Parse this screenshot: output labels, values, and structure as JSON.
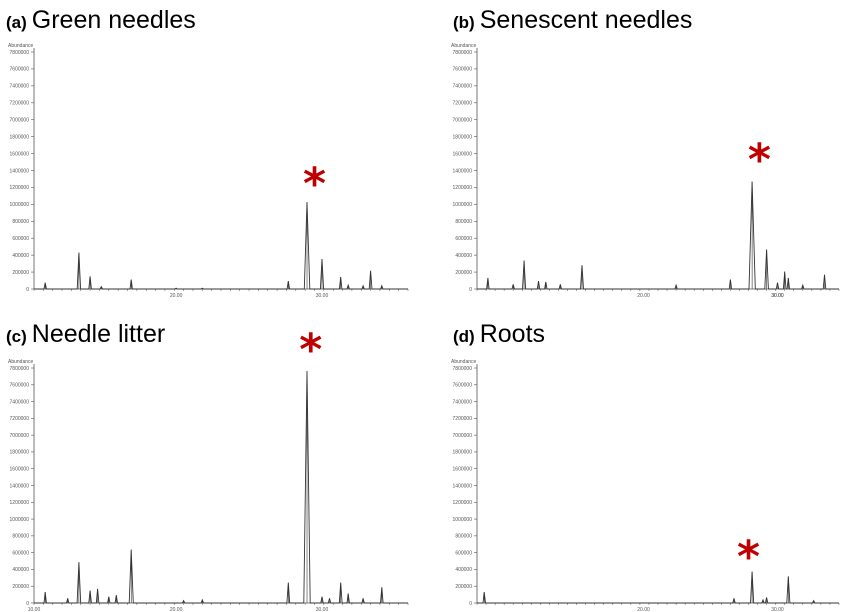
{
  "colors": {
    "line": "#333333",
    "marker": "#c00000",
    "axis": "#555555"
  },
  "chart_data": [
    {
      "type": "line",
      "panel_letter": "(a)",
      "title": "Green needles",
      "ylabel": "Abundance",
      "ytick_labels": [
        "7800000",
        "7600000",
        "7400000",
        "7200000",
        "7000000",
        "1800000",
        "1600000",
        "1400000",
        "1200000",
        "1000000",
        "800000",
        "600000",
        "400000",
        "200000",
        "0"
      ],
      "xtick_labels": [
        "20.00",
        "30.00"
      ],
      "xlim": [
        0,
        100
      ],
      "ylim": [
        0,
        15
      ],
      "marker_symbol": "*",
      "marker_x": 75,
      "marker_y": 7.0,
      "peaks": [
        {
          "x": 3,
          "y": 0.4
        },
        {
          "x": 12,
          "y": 2.3
        },
        {
          "x": 15,
          "y": 0.8
        },
        {
          "x": 18,
          "y": 0.15
        },
        {
          "x": 26,
          "y": 0.6
        },
        {
          "x": 38,
          "y": 0.05
        },
        {
          "x": 45,
          "y": 0.05
        },
        {
          "x": 68,
          "y": 0.5
        },
        {
          "x": 73,
          "y": 5.5
        },
        {
          "x": 77,
          "y": 1.9
        },
        {
          "x": 82,
          "y": 0.75
        },
        {
          "x": 84,
          "y": 0.25
        },
        {
          "x": 88,
          "y": 0.2
        },
        {
          "x": 90,
          "y": 1.15
        },
        {
          "x": 93,
          "y": 0.2
        }
      ]
    },
    {
      "type": "line",
      "panel_letter": "(b)",
      "title": "Senescent needles",
      "ylabel": "Abundance",
      "ytick_labels": [
        "7800000",
        "7600000",
        "7400000",
        "7200000",
        "7000000",
        "1800000",
        "1600000",
        "1400000",
        "1200000",
        "1000000",
        "800000",
        "600000",
        "400000",
        "200000",
        "0"
      ],
      "xtick_labels": [
        "20.00",
        "30.00",
        "30.00"
      ],
      "xlim": [
        0,
        100
      ],
      "ylim": [
        0,
        15
      ],
      "marker_symbol": "*",
      "marker_x": 78,
      "marker_y": 8.5,
      "peaks": [
        {
          "x": 3,
          "y": 0.7
        },
        {
          "x": 10,
          "y": 0.3
        },
        {
          "x": 13,
          "y": 1.8
        },
        {
          "x": 17,
          "y": 0.5
        },
        {
          "x": 19,
          "y": 0.45
        },
        {
          "x": 23,
          "y": 0.3
        },
        {
          "x": 29,
          "y": 1.5
        },
        {
          "x": 55,
          "y": 0.25
        },
        {
          "x": 70,
          "y": 0.6
        },
        {
          "x": 76,
          "y": 6.8
        },
        {
          "x": 80,
          "y": 2.5
        },
        {
          "x": 83,
          "y": 0.4
        },
        {
          "x": 85,
          "y": 1.1
        },
        {
          "x": 86,
          "y": 0.7
        },
        {
          "x": 90,
          "y": 0.25
        },
        {
          "x": 96,
          "y": 0.9
        }
      ]
    },
    {
      "type": "line",
      "panel_letter": "(c)",
      "title": "Needle litter",
      "ylabel": "Abundance",
      "ytick_labels": [
        "7800000",
        "7600000",
        "7400000",
        "7200000",
        "7000000",
        "1800000",
        "1600000",
        "1400000",
        "1200000",
        "1000000",
        "800000",
        "600000",
        "400000",
        "200000",
        "0"
      ],
      "xtick_labels": [
        "10.00",
        "20.00",
        "30.00"
      ],
      "xlim": [
        0,
        100
      ],
      "ylim": [
        0,
        15
      ],
      "marker_symbol": "*",
      "marker_x": 74,
      "marker_y": 16.5,
      "peaks": [
        {
          "x": 3,
          "y": 0.7
        },
        {
          "x": 9,
          "y": 0.3
        },
        {
          "x": 12,
          "y": 2.6
        },
        {
          "x": 15,
          "y": 0.8
        },
        {
          "x": 17,
          "y": 0.9
        },
        {
          "x": 20,
          "y": 0.4
        },
        {
          "x": 22,
          "y": 0.5
        },
        {
          "x": 26,
          "y": 3.4
        },
        {
          "x": 40,
          "y": 0.15
        },
        {
          "x": 45,
          "y": 0.2
        },
        {
          "x": 68,
          "y": 1.3
        },
        {
          "x": 73,
          "y": 14.8
        },
        {
          "x": 77,
          "y": 0.4
        },
        {
          "x": 79,
          "y": 0.3
        },
        {
          "x": 82,
          "y": 1.3
        },
        {
          "x": 84,
          "y": 0.6
        },
        {
          "x": 88,
          "y": 0.3
        },
        {
          "x": 93,
          "y": 1.0
        }
      ]
    },
    {
      "type": "line",
      "panel_letter": "(d)",
      "title": "Roots",
      "ylabel": "Abundance",
      "ytick_labels": [
        "7800000",
        "7600000",
        "7400000",
        "7200000",
        "7000000",
        "1800000",
        "1600000",
        "1400000",
        "1200000",
        "1000000",
        "800000",
        "600000",
        "400000",
        "200000",
        "0"
      ],
      "xtick_labels": [
        "20.00",
        "30.00"
      ],
      "xlim": [
        0,
        100
      ],
      "ylim": [
        0,
        15
      ],
      "marker_symbol": "*",
      "marker_x": 75,
      "marker_y": 3.3,
      "peaks": [
        {
          "x": 2,
          "y": 0.7
        },
        {
          "x": 71,
          "y": 0.3
        },
        {
          "x": 76,
          "y": 2.0
        },
        {
          "x": 79,
          "y": 0.2
        },
        {
          "x": 80,
          "y": 0.35
        },
        {
          "x": 86,
          "y": 1.7
        },
        {
          "x": 93,
          "y": 0.15
        }
      ]
    }
  ]
}
